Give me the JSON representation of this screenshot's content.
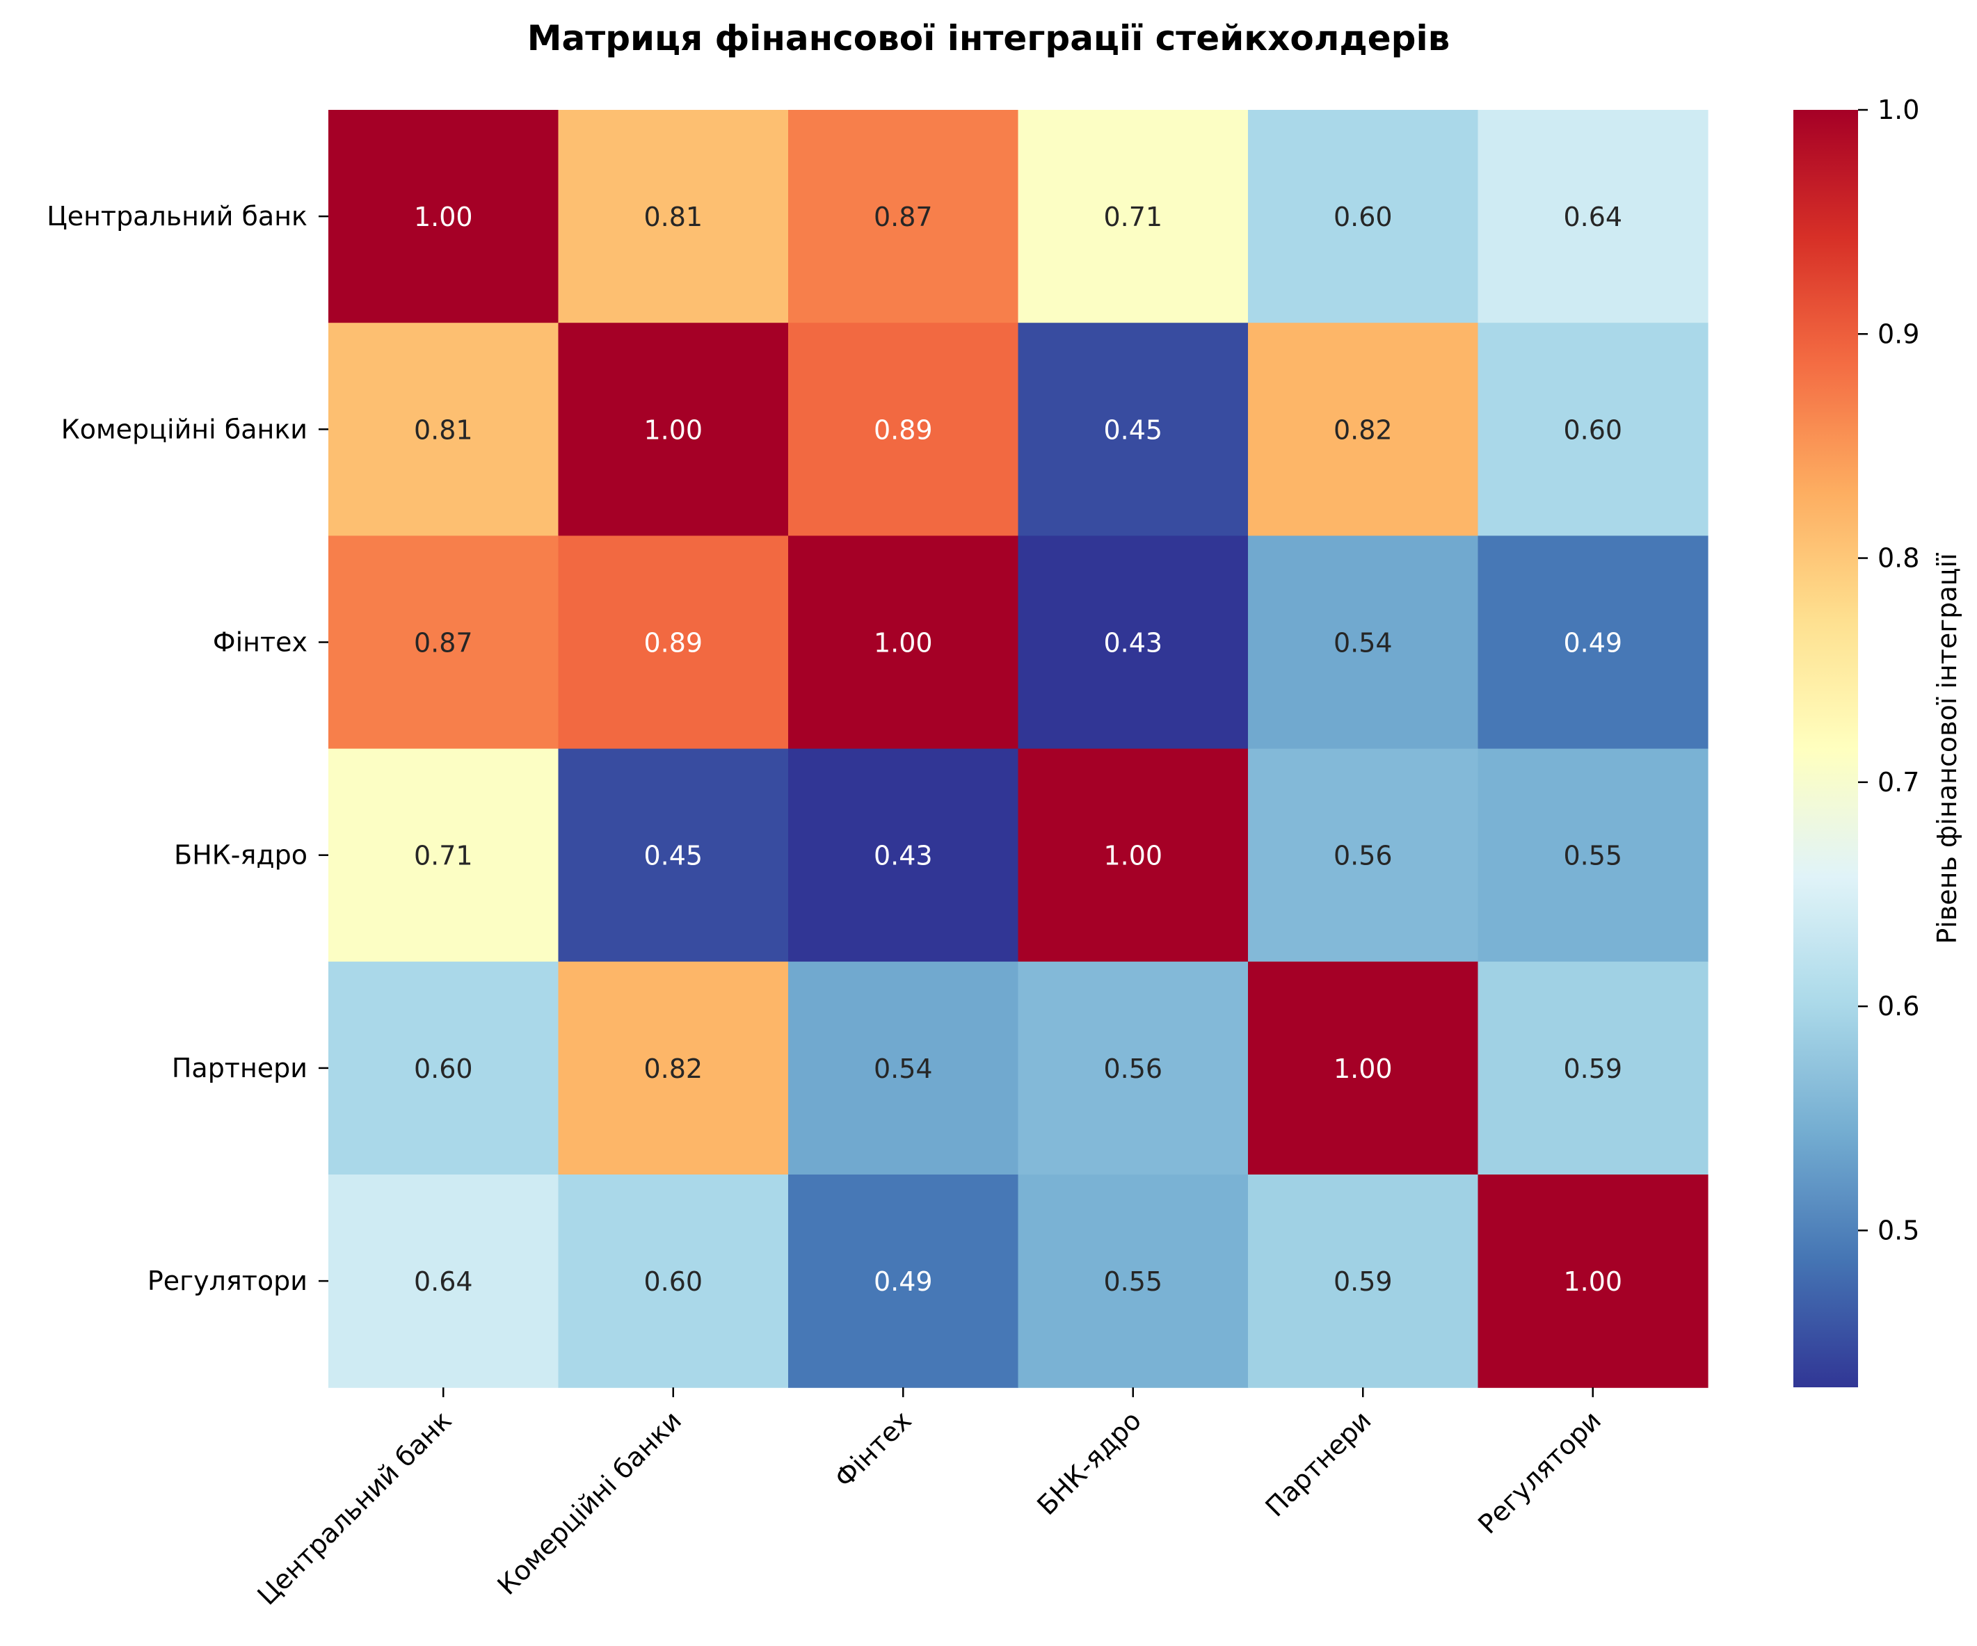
{
  "chart_data": {
    "type": "heatmap",
    "title": "Матриця фінансової інтеграції стейкхолдерів",
    "rows": [
      "Центральний банк",
      "Комерційні банки",
      "Фінтех",
      "БНК-ядро",
      "Партнери",
      "Регулятори"
    ],
    "columns": [
      "Центральний банк",
      "Комерційні банки",
      "Фінтех",
      "БНК-ядро",
      "Партнери",
      "Регулятори"
    ],
    "values": [
      [
        1.0,
        0.81,
        0.87,
        0.71,
        0.6,
        0.64
      ],
      [
        0.81,
        1.0,
        0.89,
        0.45,
        0.82,
        0.6
      ],
      [
        0.87,
        0.89,
        1.0,
        0.43,
        0.54,
        0.49
      ],
      [
        0.71,
        0.45,
        0.43,
        1.0,
        0.56,
        0.55
      ],
      [
        0.6,
        0.82,
        0.54,
        0.56,
        1.0,
        0.59
      ],
      [
        0.64,
        0.6,
        0.49,
        0.55,
        0.59,
        1.0
      ]
    ],
    "value_format": "0.00",
    "colormap": "RdYlBu_r",
    "colorbar": {
      "label": "Рівень фінансової інтеграції",
      "range": [
        0.43,
        1.0
      ],
      "ticks": [
        "0.5",
        "0.6",
        "0.7",
        "0.8",
        "0.9",
        "1.0"
      ]
    }
  }
}
